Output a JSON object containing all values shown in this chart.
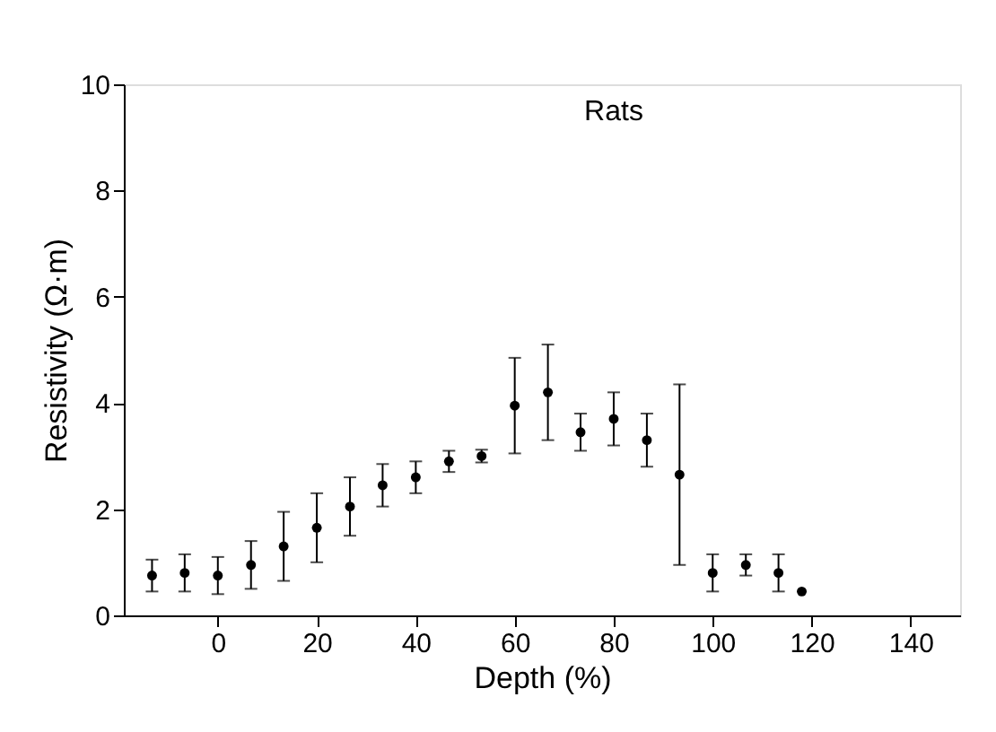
{
  "chart_data": {
    "type": "scatter",
    "title": "Rats",
    "xlabel": "Depth (%)",
    "ylabel": "Resistivity (Ω·m)",
    "x": [
      -13.3,
      -6.7,
      0,
      6.7,
      13.3,
      20,
      26.7,
      33.3,
      40,
      46.7,
      53.3,
      60,
      66.7,
      73.3,
      80,
      86.7,
      93.3,
      100,
      106.7,
      113.3,
      118
    ],
    "series": [
      {
        "color": "#000000",
        "values": [
          0.75,
          0.8,
          0.75,
          0.95,
          1.3,
          1.65,
          2.05,
          2.45,
          2.6,
          2.9,
          3.0,
          3.95,
          4.2,
          3.45,
          3.7,
          3.3,
          2.65,
          0.8,
          0.95,
          0.8,
          0.45
        ],
        "errors": [
          0.3,
          0.35,
          0.35,
          0.45,
          0.65,
          0.65,
          0.55,
          0.4,
          0.3,
          0.2,
          0.12,
          0.9,
          0.9,
          0.35,
          0.5,
          0.5,
          1.7,
          0.35,
          0.2,
          0.35,
          null
        ]
      }
    ],
    "xlim": [
      -19,
      150
    ],
    "xticks": [
      0,
      20,
      40,
      60,
      80,
      100,
      120,
      140
    ],
    "ylim": [
      0,
      10
    ],
    "yticks": [
      0,
      2,
      4,
      6,
      8,
      10
    ],
    "marker": "circle",
    "grid": false
  }
}
